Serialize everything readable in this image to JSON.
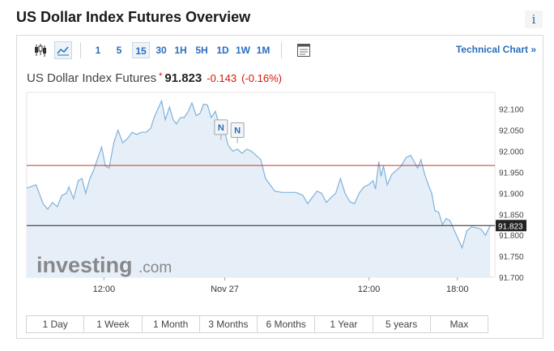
{
  "page_title": "US Dollar Index Futures Overview",
  "info_label": "i",
  "toolbar": {
    "icons": [
      "candlestick-icon",
      "line-chart-icon",
      "calendar-icon"
    ],
    "timeframes": [
      "1",
      "5",
      "15",
      "30",
      "1H",
      "5H",
      "1D",
      "1W",
      "1M"
    ],
    "active_timeframe": "15",
    "technical_chart_label": "Technical Chart »"
  },
  "quote": {
    "name": "US Dollar Index Futures",
    "star": "*",
    "price": "91.823",
    "change": "-0.143",
    "change_pct": "(-0.16%)",
    "change_color": "#d91400"
  },
  "ranges": [
    "1 Day",
    "1 Week",
    "1 Month",
    "3 Months",
    "6 Months",
    "1 Year",
    "5 years",
    "Max"
  ],
  "watermark": {
    "brand": "investing",
    "suffix": ".com"
  },
  "colors": {
    "line": "#7fb2dc",
    "area": "#e6eff7",
    "prev_close": "#c0392b",
    "current_line": "#222222",
    "link": "#2a6ebb"
  },
  "chart_data": {
    "type": "area",
    "y_ticks": [
      "92.100",
      "92.050",
      "92.000",
      "91.950",
      "91.900",
      "91.850",
      "91.800",
      "91.750",
      "91.700"
    ],
    "ylim": [
      91.7,
      92.14
    ],
    "x_ticks": [
      {
        "label": "12:00",
        "t": 0.165
      },
      {
        "label": "Nov 27",
        "t": 0.423
      },
      {
        "label": "12:00",
        "t": 0.731
      },
      {
        "label": "18:00",
        "t": 0.92
      }
    ],
    "reference_line": 91.966,
    "current_value": 91.823,
    "current_label": "91.823",
    "news_markers": [
      {
        "label": "N",
        "t": 0.415,
        "value": 92.007
      },
      {
        "label": "N",
        "t": 0.45,
        "value": 92.0
      }
    ],
    "points": [
      [
        0.0,
        91.912
      ],
      [
        0.02,
        91.92
      ],
      [
        0.035,
        91.875
      ],
      [
        0.045,
        91.862
      ],
      [
        0.055,
        91.878
      ],
      [
        0.065,
        91.868
      ],
      [
        0.075,
        91.895
      ],
      [
        0.085,
        91.9
      ],
      [
        0.09,
        91.915
      ],
      [
        0.1,
        91.887
      ],
      [
        0.11,
        91.93
      ],
      [
        0.118,
        91.935
      ],
      [
        0.126,
        91.9
      ],
      [
        0.135,
        91.935
      ],
      [
        0.143,
        91.955
      ],
      [
        0.152,
        91.985
      ],
      [
        0.16,
        92.01
      ],
      [
        0.168,
        91.965
      ],
      [
        0.176,
        91.96
      ],
      [
        0.186,
        92.02
      ],
      [
        0.195,
        92.05
      ],
      [
        0.205,
        92.02
      ],
      [
        0.215,
        92.03
      ],
      [
        0.225,
        92.045
      ],
      [
        0.235,
        92.04
      ],
      [
        0.245,
        92.045
      ],
      [
        0.255,
        92.045
      ],
      [
        0.265,
        92.055
      ],
      [
        0.272,
        92.08
      ],
      [
        0.28,
        92.1
      ],
      [
        0.288,
        92.12
      ],
      [
        0.296,
        92.075
      ],
      [
        0.305,
        92.105
      ],
      [
        0.313,
        92.075
      ],
      [
        0.32,
        92.065
      ],
      [
        0.328,
        92.08
      ],
      [
        0.336,
        92.08
      ],
      [
        0.345,
        92.095
      ],
      [
        0.353,
        92.115
      ],
      [
        0.362,
        92.085
      ],
      [
        0.37,
        92.09
      ],
      [
        0.378,
        92.112
      ],
      [
        0.386,
        92.11
      ],
      [
        0.394,
        92.08
      ],
      [
        0.403,
        92.095
      ],
      [
        0.412,
        92.06
      ],
      [
        0.42,
        92.06
      ],
      [
        0.43,
        92.015
      ],
      [
        0.44,
        92.0
      ],
      [
        0.45,
        92.005
      ],
      [
        0.46,
        91.995
      ],
      [
        0.47,
        92.005
      ],
      [
        0.48,
        92.0
      ],
      [
        0.49,
        91.99
      ],
      [
        0.5,
        91.98
      ],
      [
        0.51,
        91.935
      ],
      [
        0.52,
        91.92
      ],
      [
        0.53,
        91.905
      ],
      [
        0.545,
        91.902
      ],
      [
        0.56,
        91.902
      ],
      [
        0.575,
        91.902
      ],
      [
        0.59,
        91.895
      ],
      [
        0.6,
        91.875
      ],
      [
        0.61,
        91.89
      ],
      [
        0.62,
        91.905
      ],
      [
        0.63,
        91.9
      ],
      [
        0.64,
        91.878
      ],
      [
        0.65,
        91.89
      ],
      [
        0.66,
        91.9
      ],
      [
        0.67,
        91.935
      ],
      [
        0.68,
        91.9
      ],
      [
        0.69,
        91.88
      ],
      [
        0.7,
        91.875
      ],
      [
        0.71,
        91.9
      ],
      [
        0.72,
        91.915
      ],
      [
        0.73,
        91.92
      ],
      [
        0.74,
        91.93
      ],
      [
        0.745,
        91.91
      ],
      [
        0.752,
        91.975
      ],
      [
        0.757,
        91.94
      ],
      [
        0.762,
        91.965
      ],
      [
        0.77,
        91.92
      ],
      [
        0.78,
        91.945
      ],
      [
        0.79,
        91.955
      ],
      [
        0.8,
        91.965
      ],
      [
        0.81,
        91.985
      ],
      [
        0.82,
        91.99
      ],
      [
        0.83,
        91.97
      ],
      [
        0.835,
        91.96
      ],
      [
        0.842,
        91.98
      ],
      [
        0.85,
        91.945
      ],
      [
        0.858,
        91.92
      ],
      [
        0.865,
        91.9
      ],
      [
        0.872,
        91.858
      ],
      [
        0.88,
        91.855
      ],
      [
        0.888,
        91.825
      ],
      [
        0.896,
        91.84
      ],
      [
        0.904,
        91.835
      ],
      [
        0.912,
        91.815
      ],
      [
        0.92,
        91.795
      ],
      [
        0.93,
        91.77
      ],
      [
        0.94,
        91.81
      ],
      [
        0.95,
        91.82
      ],
      [
        0.96,
        91.818
      ],
      [
        0.97,
        91.815
      ],
      [
        0.98,
        91.8
      ],
      [
        0.99,
        91.823
      ]
    ]
  }
}
